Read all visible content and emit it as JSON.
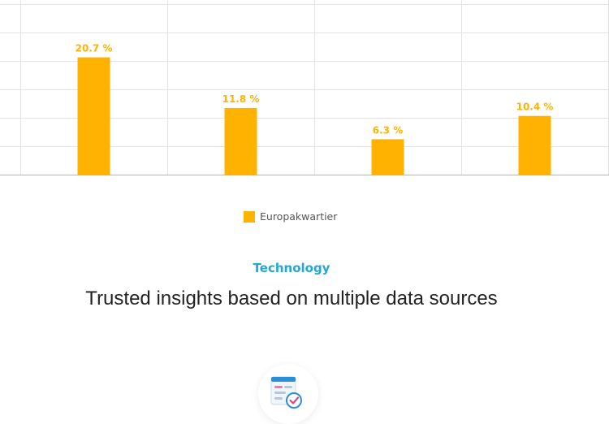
{
  "chart_data": {
    "type": "bar",
    "series": [
      {
        "name": "Europakwartier",
        "values": [
          20.7,
          11.8,
          6.3,
          10.4
        ],
        "labels": [
          "20.7 %",
          "11.8 %",
          "6.3 %",
          "10.4 %"
        ]
      }
    ],
    "ylim": [
      0,
      30
    ],
    "grid": true,
    "legend_position": "bottom-center",
    "bar_color": "#FFB300"
  },
  "legend": {
    "label": "Europakwartier"
  },
  "section": {
    "eyebrow": "Technology",
    "eyebrow_color": "#22A8D6",
    "headline": "Trusted insights based on multiple data sources"
  },
  "icon": {
    "name": "data-report-icon"
  }
}
